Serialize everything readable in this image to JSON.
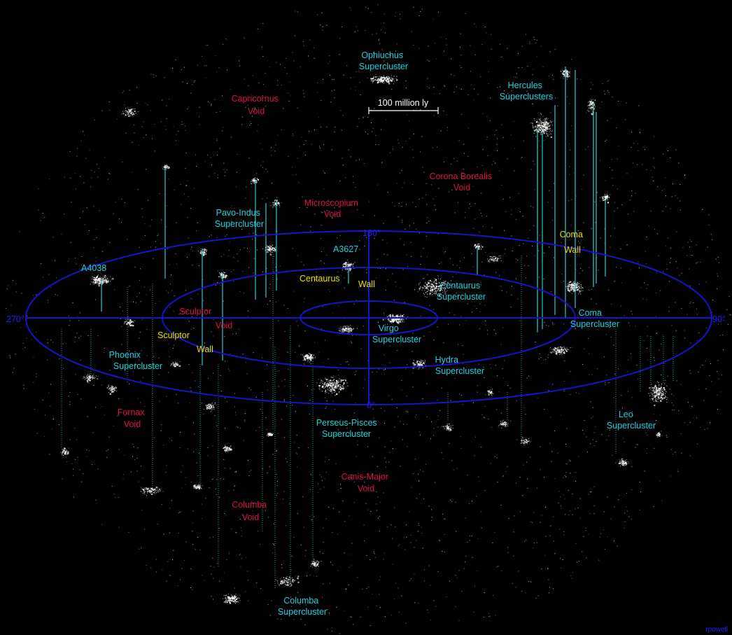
{
  "colors": {
    "background": "#000000",
    "supercluster_label": "#1fd3dc",
    "void_label": "#e0143c",
    "wall_label": "#e8e000",
    "grid_ellipse": "#1515c8",
    "axis_degree_label": "#2020ff",
    "drop_line": "#2fb8c0",
    "scale_bar": "#ffffff"
  },
  "scale_bar": {
    "label": "100 million ly"
  },
  "axis_labels": {
    "deg_0": "0°",
    "deg_90": "90°",
    "deg_180": "180°",
    "deg_270": "270°"
  },
  "superclusters": {
    "ophiuchus": [
      "Ophiuchus",
      "Supercluster"
    ],
    "hercules": [
      "Hercules",
      "Superclusters"
    ],
    "pavo_indus": [
      "Pavo-Indus",
      "Supercluster"
    ],
    "a3627": [
      "A3627"
    ],
    "a4038": [
      "A4038"
    ],
    "centaurus": [
      "Centaurus",
      "Supercluster"
    ],
    "coma": [
      "Coma",
      "Supercluster"
    ],
    "virgo": [
      "Virgo",
      "Supercluster"
    ],
    "phoenix": [
      "Phoenix",
      "Supercluster"
    ],
    "hydra": [
      "Hydra",
      "Supercluster"
    ],
    "perseus_pisces": [
      "Perseus-Pisces",
      "Supercluster"
    ],
    "leo": [
      "Leo",
      "Supercluster"
    ],
    "columba": [
      "Columba",
      "Supercluster"
    ]
  },
  "voids": {
    "capricornus": [
      "Capricornus",
      "Void"
    ],
    "corona_borealis": [
      "Corona Borealis",
      "Void"
    ],
    "microscopium": [
      "Microscopium",
      "Void"
    ],
    "sculptor": [
      "Sculptor",
      "Void"
    ],
    "fornax": [
      "Fornax",
      "Void"
    ],
    "canis_major": [
      "Canis-Major",
      "Void"
    ],
    "columba": [
      "Columba",
      "Void"
    ]
  },
  "walls": {
    "coma": [
      "Coma",
      "Wall"
    ],
    "centaurus": [
      "Centaurus",
      "Wall"
    ],
    "sculptor": [
      "Sculptor",
      "Wall"
    ]
  },
  "credit": "rpowell"
}
